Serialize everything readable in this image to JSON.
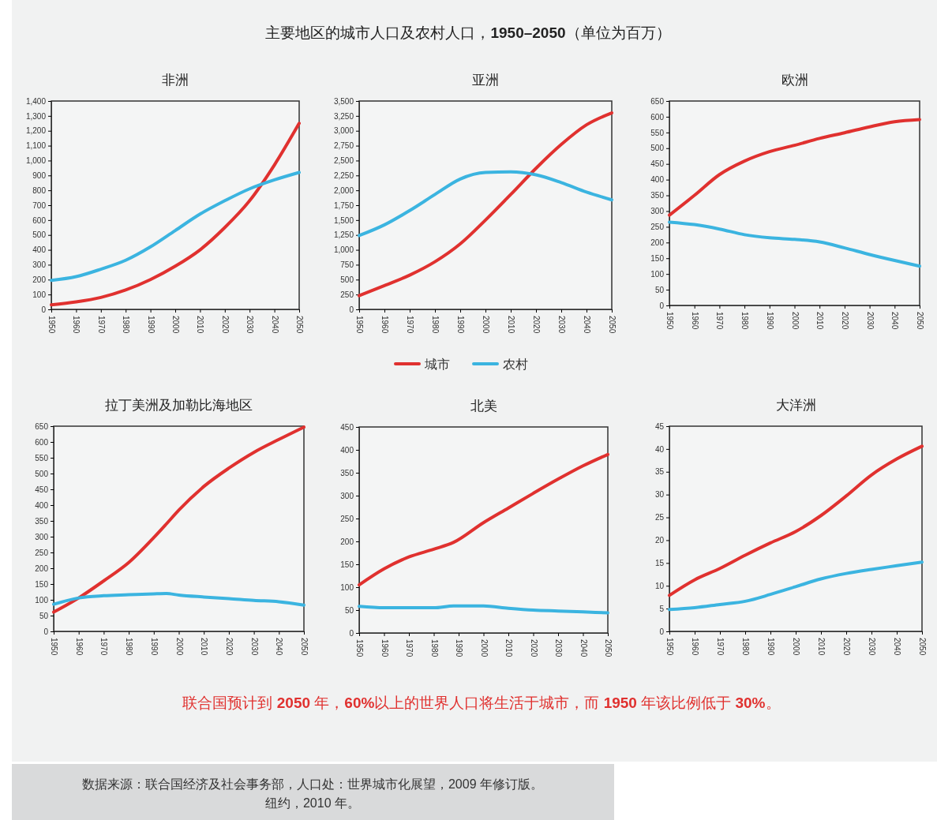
{
  "chart_data": [
    {
      "type": "other",
      "title": "主要地区的城市人口及农村人口，1950–2050（单位为百万）",
      "annotations": [
        "联合国预计到 2050 年，60%以上的世界人口将生活于城市，而 1950 年该比例低于 30%。",
        "数据来源：联合国经济及社会事务部，人口处：世界城市化展望，2009 年修订版。",
        "纽约，2010 年。"
      ]
    },
    {
      "type": "line",
      "title": "非洲",
      "x": [
        1950,
        1960,
        1970,
        1980,
        1990,
        2000,
        2010,
        2020,
        2030,
        2040,
        2050
      ],
      "xlim": [
        1950,
        2050
      ],
      "xticks": [
        1950,
        1960,
        1970,
        1980,
        1990,
        2000,
        2010,
        2020,
        2030,
        2040,
        2050
      ],
      "ylim": [
        0,
        1400
      ],
      "yticks": [
        0,
        100,
        200,
        300,
        400,
        500,
        600,
        700,
        800,
        900,
        {
          "value": 1000,
          "label": "1,000"
        },
        {
          "value": 1100,
          "label": "1,100"
        },
        {
          "value": 1200,
          "label": "1,200"
        },
        {
          "value": 1300,
          "label": "1,300"
        },
        {
          "value": 1400,
          "label": "1,400"
        }
      ],
      "series": [
        {
          "color": "#e0312f",
          "values": [
            30,
            50,
            80,
            130,
            200,
            290,
            400,
            550,
            730,
            970,
            1250
          ]
        },
        {
          "color": "#3bb4e0",
          "values": [
            195,
            220,
            270,
            330,
            420,
            530,
            640,
            730,
            810,
            870,
            920
          ]
        }
      ]
    },
    {
      "type": "line",
      "title": "亚洲",
      "legend": "bottom",
      "x": [
        1950,
        1960,
        1970,
        1980,
        1990,
        2000,
        2010,
        2020,
        2030,
        2040,
        2050
      ],
      "xlim": [
        1950,
        2050
      ],
      "xticks": [
        1950,
        1960,
        1970,
        1980,
        1990,
        2000,
        2010,
        2020,
        2030,
        2040,
        2050
      ],
      "ylim": [
        0,
        3500
      ],
      "yticks": [
        0,
        250,
        500,
        750,
        {
          "value": 1000,
          "label": "1,000"
        },
        {
          "value": 1250,
          "label": "1,250"
        },
        {
          "value": 1500,
          "label": "1,500"
        },
        {
          "value": 1750,
          "label": "1,750"
        },
        {
          "value": 2000,
          "label": "2,000"
        },
        {
          "value": 2250,
          "label": "2,250"
        },
        {
          "value": 2500,
          "label": "2,500"
        },
        {
          "value": 2750,
          "label": "2,750"
        },
        {
          "value": 3000,
          "label": "3,000"
        },
        {
          "value": 3250,
          "label": "3,250"
        },
        {
          "value": 3500,
          "label": "3,500"
        }
      ],
      "series": [
        {
          "name": "城市",
          "color": "#e0312f",
          "values": [
            230,
            400,
            575,
            800,
            1100,
            1500,
            1930,
            2370,
            2770,
            3100,
            3300
          ]
        },
        {
          "name": "农村",
          "color": "#3bb4e0",
          "values": [
            1240,
            1420,
            1660,
            1930,
            2190,
            2300,
            2310,
            2260,
            2130,
            1970,
            1840
          ]
        }
      ]
    },
    {
      "type": "line",
      "title": "欧洲",
      "x": [
        1950,
        1960,
        1970,
        1980,
        1990,
        2000,
        2010,
        2020,
        2030,
        2040,
        2050
      ],
      "xlim": [
        1950,
        2050
      ],
      "xticks": [
        1950,
        1960,
        1970,
        1980,
        1990,
        2000,
        2010,
        2020,
        2030,
        2040,
        2050
      ],
      "ylim": [
        0,
        650
      ],
      "yticks": [
        0,
        50,
        100,
        150,
        200,
        250,
        300,
        350,
        400,
        450,
        500,
        550,
        600,
        650
      ],
      "series": [
        {
          "color": "#e0312f",
          "values": [
            287,
            350,
            416,
            459,
            489,
            509,
            531,
            549,
            568,
            584,
            591
          ]
        },
        {
          "color": "#3bb4e0",
          "values": [
            265,
            257,
            243,
            225,
            215,
            210,
            202,
            183,
            162,
            143,
            125
          ]
        }
      ]
    },
    {
      "type": "line",
      "title": "拉丁美洲及加勒比海地区",
      "x": [
        1950,
        1960,
        1970,
        1980,
        1990,
        1995,
        2000,
        2010,
        2020,
        2030,
        2040,
        2050
      ],
      "xlim": [
        1950,
        2050
      ],
      "xticks": [
        1950,
        1960,
        1970,
        1980,
        1990,
        2000,
        2010,
        2020,
        2030,
        2040,
        2050
      ],
      "ylim": [
        0,
        650
      ],
      "yticks": [
        0,
        50,
        100,
        150,
        200,
        250,
        300,
        350,
        400,
        450,
        500,
        550,
        600,
        650
      ],
      "series": [
        {
          "color": "#e0312f",
          "values": [
            61,
            106,
            160,
            218,
            297,
            340,
            384,
            459,
            517,
            567,
            608,
            647
          ]
        },
        {
          "color": "#3bb4e0",
          "values": [
            86,
            106,
            113,
            116,
            119,
            120,
            115,
            109,
            104,
            98,
            94,
            83
          ]
        }
      ]
    },
    {
      "type": "line",
      "title": "北美",
      "x": [
        1950,
        1960,
        1970,
        1980,
        1988,
        2000,
        2010,
        2020,
        2030,
        2040,
        2050
      ],
      "xlim": [
        1950,
        2050
      ],
      "xticks": [
        1950,
        1960,
        1970,
        1980,
        1990,
        2000,
        2010,
        2020,
        2030,
        2040,
        2050
      ],
      "ylim": [
        0,
        450
      ],
      "yticks": [
        0,
        50,
        100,
        150,
        200,
        250,
        300,
        350,
        400,
        450
      ],
      "series": [
        {
          "color": "#e0312f",
          "values": [
            105,
            140,
            166,
            183,
            198,
            241,
            273,
            305,
            336,
            365,
            390
          ]
        },
        {
          "color": "#3bb4e0",
          "values": [
            58,
            55,
            55,
            55,
            59,
            59,
            54,
            50,
            48,
            46,
            44
          ]
        }
      ]
    },
    {
      "type": "line",
      "title": "大洋洲",
      "x": [
        1950,
        1960,
        1970,
        1980,
        1990,
        2000,
        2010,
        2020,
        2030,
        2040,
        2050
      ],
      "xlim": [
        1950,
        2050
      ],
      "xticks": [
        1950,
        1960,
        1970,
        1980,
        1990,
        2000,
        2010,
        2020,
        2030,
        2040,
        2050
      ],
      "ylim": [
        0,
        45
      ],
      "yticks": [
        0,
        5,
        10,
        15,
        20,
        25,
        30,
        35,
        40,
        45
      ],
      "series": [
        {
          "color": "#e0312f",
          "values": [
            7.9,
            11.3,
            13.8,
            16.7,
            19.4,
            21.9,
            25.4,
            29.7,
            34.3,
            37.8,
            40.6
          ]
        },
        {
          "color": "#3bb4e0",
          "values": [
            4.8,
            5.2,
            5.9,
            6.6,
            8.1,
            9.8,
            11.5,
            12.7,
            13.6,
            14.4,
            15.2
          ]
        }
      ]
    }
  ]
}
